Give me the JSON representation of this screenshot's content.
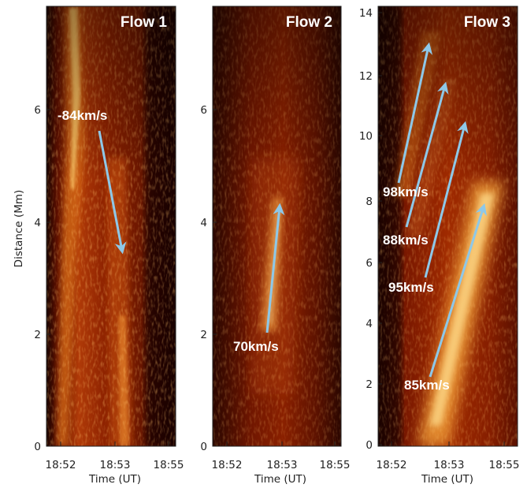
{
  "figure": {
    "ylabel": "Distance (Mm)",
    "xlabel": "Time (UT)",
    "panels": [
      {
        "title": "Flow 1",
        "yticks": [
          "0",
          "2",
          "4",
          "6"
        ],
        "xticks": [
          "18:52",
          "18:53",
          "18:55"
        ],
        "arrows": [
          {
            "label": "-84km/s"
          }
        ]
      },
      {
        "title": "Flow 2",
        "yticks": [
          "0",
          "2",
          "4",
          "6"
        ],
        "xticks": [
          "18:52",
          "18:53",
          "18:55"
        ],
        "arrows": [
          {
            "label": "70km/s"
          }
        ]
      },
      {
        "title": "Flow 3",
        "yticks": [
          "0",
          "2",
          "4",
          "6",
          "8",
          "10",
          "12",
          "14"
        ],
        "xticks": [
          "18:52",
          "18:53",
          "18:55"
        ],
        "arrows": [
          {
            "label": "98km/s"
          },
          {
            "label": "88km/s"
          },
          {
            "label": "95km/s"
          },
          {
            "label": "85km/s"
          }
        ]
      }
    ],
    "colors": {
      "arrow": "#8ec8e8",
      "background_dark": "#120400",
      "background_mid": "#8a1a00",
      "bright": "#ffd070"
    }
  }
}
